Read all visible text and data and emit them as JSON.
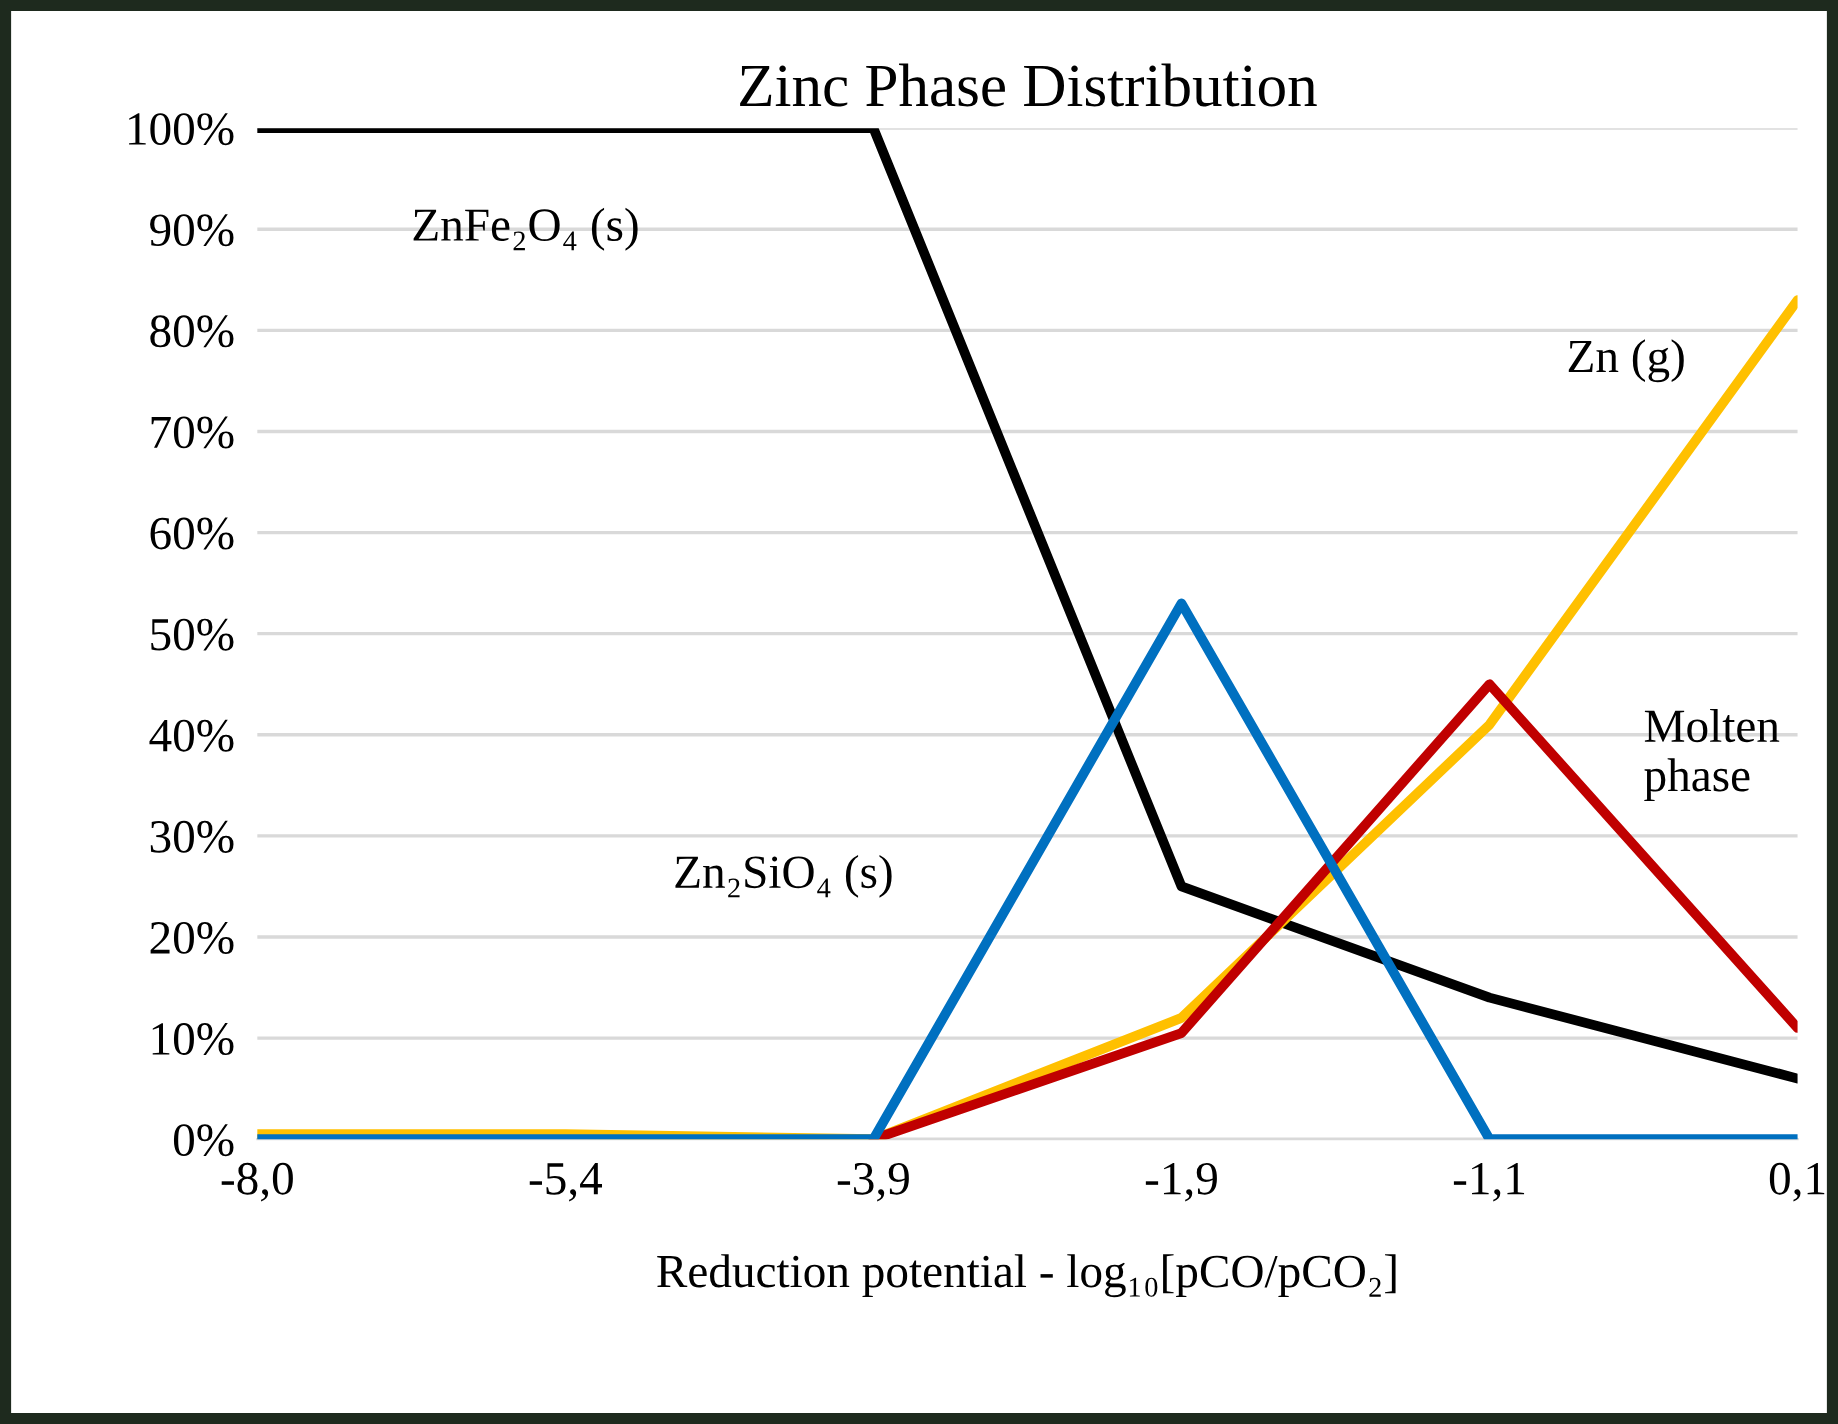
{
  "chart_data": {
    "type": "line",
    "title": "Zinc Phase Distribution",
    "xlabel": "Reduction potential - log₁₀[pCO/pCO₂]",
    "categories": [
      "-8,0",
      "-5,4",
      "-3,9",
      "-1,9",
      "-1,1",
      "0,1"
    ],
    "series": [
      {
        "name": "ZnFe₂O₄ (s)",
        "color": "#000000",
        "values": [
          100,
          100,
          100,
          25,
          14,
          6
        ]
      },
      {
        "name": "Zn (g)",
        "color": "#ffc000",
        "values": [
          0.5,
          0.5,
          0,
          12,
          41,
          83
        ]
      },
      {
        "name": "Molten phase",
        "color": "#c00000",
        "values": [
          null,
          null,
          0,
          10.5,
          45,
          11
        ]
      },
      {
        "name": "Zn₂SiO₄ (s)",
        "color": "#0070c0",
        "values": [
          0,
          0,
          0,
          53,
          0,
          0
        ]
      }
    ],
    "ylim": [
      0,
      100
    ],
    "yticks": [
      {
        "value": 0,
        "label": "0%"
      },
      {
        "value": 10,
        "label": "10%"
      },
      {
        "value": 20,
        "label": "20%"
      },
      {
        "value": 30,
        "label": "30%"
      },
      {
        "value": 40,
        "label": "40%"
      },
      {
        "value": 50,
        "label": "50%"
      },
      {
        "value": 60,
        "label": "60%"
      },
      {
        "value": 70,
        "label": "70%"
      },
      {
        "value": 80,
        "label": "80%"
      },
      {
        "value": 90,
        "label": "90%"
      },
      {
        "value": 100,
        "label": "100%"
      }
    ],
    "grid": "y",
    "legend": false,
    "marker": "none",
    "line_style": "solid"
  }
}
